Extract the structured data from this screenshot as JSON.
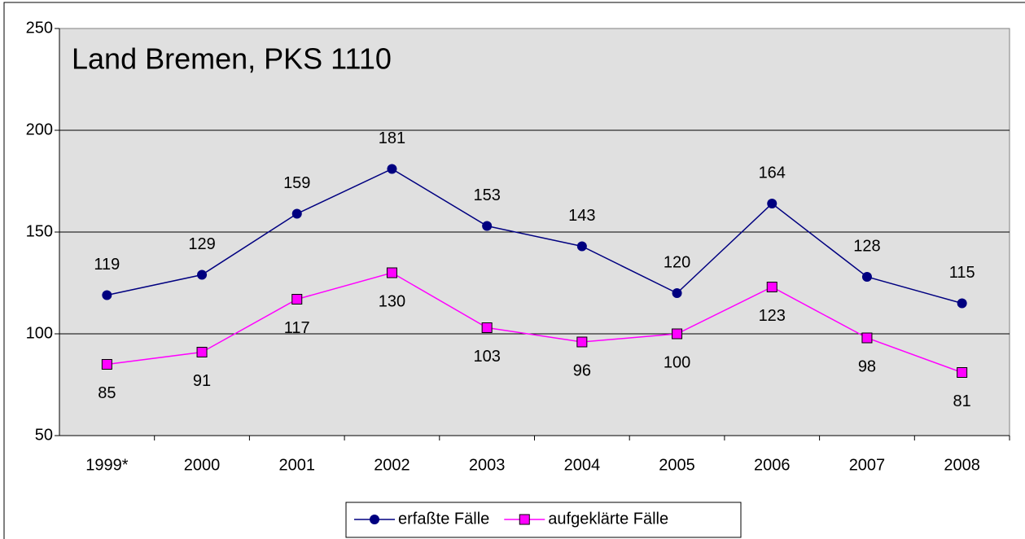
{
  "chart_data": {
    "type": "line",
    "title": "Land Bremen, PKS 1110",
    "categories": [
      "1999*",
      "2000",
      "2001",
      "2002",
      "2003",
      "2004",
      "2005",
      "2006",
      "2007",
      "2008"
    ],
    "series": [
      {
        "name": "erfaßte Fälle",
        "color": "#000080",
        "marker": "circle",
        "values": [
          119,
          129,
          159,
          181,
          153,
          143,
          120,
          164,
          128,
          115
        ]
      },
      {
        "name": "aufgeklärte Fälle",
        "color": "#ff00ff",
        "marker": "square",
        "values": [
          85,
          91,
          117,
          130,
          103,
          96,
          100,
          123,
          98,
          81
        ]
      }
    ],
    "ylim": [
      50,
      250
    ],
    "yticks": [
      50,
      100,
      150,
      200,
      250
    ],
    "grid": true,
    "legend": "bottom"
  }
}
